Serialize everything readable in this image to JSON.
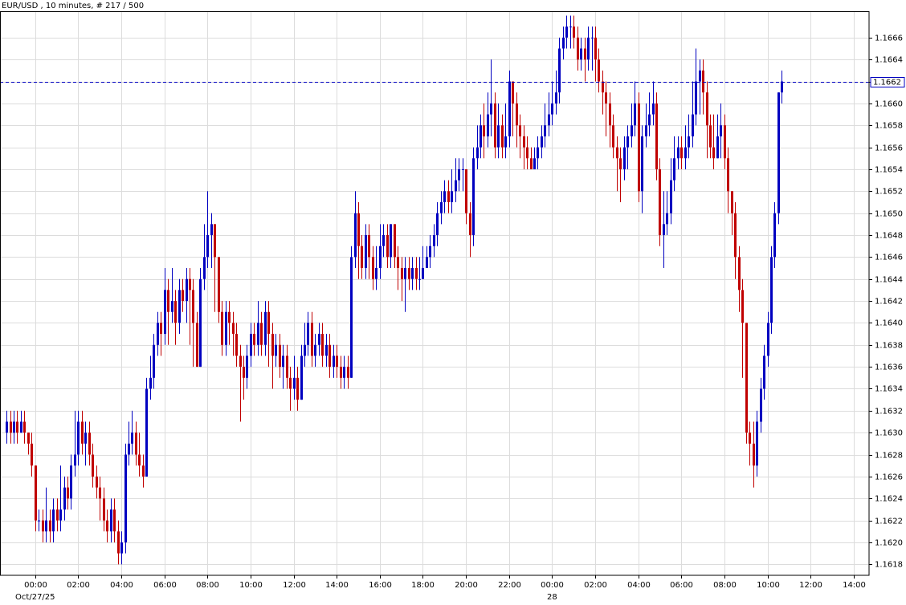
{
  "chart_data": {
    "type": "candlestick",
    "title": "EUR/USD , 10 minutes, # 217 / 500",
    "up_color": "#0000c0",
    "down_color": "#c00000",
    "grid": true,
    "last_price": 1.1662,
    "last_price_color": "#0000c0",
    "xlim": [
      -1.8,
      240.3
    ],
    "xticks": [
      {
        "value": 8,
        "label": "00:00"
      },
      {
        "value": 20,
        "label": "02:00"
      },
      {
        "value": 32,
        "label": "04:00"
      },
      {
        "value": 44,
        "label": "06:00"
      },
      {
        "value": 56,
        "label": "08:00"
      },
      {
        "value": 68,
        "label": "10:00"
      },
      {
        "value": 80,
        "label": "12:00"
      },
      {
        "value": 92,
        "label": "14:00"
      },
      {
        "value": 104,
        "label": "16:00"
      },
      {
        "value": 116,
        "label": "18:00"
      },
      {
        "value": 128,
        "label": "20:00"
      },
      {
        "value": 140,
        "label": "22:00"
      },
      {
        "value": 152,
        "label": "00:00"
      },
      {
        "value": 164,
        "label": "02:00"
      },
      {
        "value": 176,
        "label": "04:00"
      },
      {
        "value": 188,
        "label": "06:00"
      },
      {
        "value": 200,
        "label": "08:00"
      },
      {
        "value": 212,
        "label": "10:00"
      },
      {
        "value": 224,
        "label": "12:00"
      },
      {
        "value": 236,
        "label": "14:00"
      }
    ],
    "date_labels": [
      {
        "value": 8,
        "label": "Oct/27/25"
      },
      {
        "value": 152,
        "label": "28"
      }
    ],
    "ylim": [
      1.1617,
      1.16684
    ],
    "yticks": [
      1.1618,
      {
        "value": 1.162,
        "label": "1.1620"
      },
      1.1622,
      1.1624,
      1.1626,
      1.1628,
      {
        "value": 1.163,
        "label": "1.1630"
      },
      1.1632,
      1.1634,
      1.1636,
      1.1638,
      {
        "value": 1.164,
        "label": "1.1640"
      },
      1.1642,
      1.1644,
      1.1646,
      1.1648,
      {
        "value": 1.165,
        "label": "1.1650"
      },
      1.1652,
      1.1654,
      1.1656,
      1.1658,
      {
        "value": 1.166,
        "label": "1.1660"
      },
      1.1662,
      1.1664,
      1.1666
    ],
    "candles": [
      [
        1.163,
        1.1632,
        1.1629,
        1.1631
      ],
      [
        1.1631,
        1.1632,
        1.1629,
        1.163
      ],
      [
        1.163,
        1.1632,
        1.1629,
        1.1631
      ],
      [
        1.1631,
        1.1632,
        1.1629,
        1.163
      ],
      [
        1.163,
        1.1632,
        1.163,
        1.1631
      ],
      [
        1.1631,
        1.1632,
        1.1629,
        1.163
      ],
      [
        1.163,
        1.163,
        1.1628,
        1.1629
      ],
      [
        1.1629,
        1.163,
        1.1626,
        1.1627
      ],
      [
        1.1627,
        1.1627,
        1.1621,
        1.1622
      ],
      [
        1.1622,
        1.1623,
        1.1621,
        1.1622
      ],
      [
        1.1622,
        1.1623,
        1.162,
        1.1621
      ],
      [
        1.1621,
        1.1625,
        1.162,
        1.1622
      ],
      [
        1.1622,
        1.1623,
        1.162,
        1.1621
      ],
      [
        1.1621,
        1.1624,
        1.162,
        1.1623
      ],
      [
        1.1623,
        1.1624,
        1.1621,
        1.1622
      ],
      [
        1.1622,
        1.1627,
        1.1621,
        1.1623
      ],
      [
        1.1623,
        1.1626,
        1.1622,
        1.1625
      ],
      [
        1.1625,
        1.1626,
        1.1623,
        1.1624
      ],
      [
        1.1624,
        1.1628,
        1.1623,
        1.1627
      ],
      [
        1.1627,
        1.1632,
        1.1626,
        1.1628
      ],
      [
        1.1628,
        1.1632,
        1.1627,
        1.1631
      ],
      [
        1.1631,
        1.1632,
        1.1628,
        1.1629
      ],
      [
        1.1629,
        1.1631,
        1.1627,
        1.163
      ],
      [
        1.163,
        1.1631,
        1.1627,
        1.1628
      ],
      [
        1.1628,
        1.1629,
        1.1625,
        1.1626
      ],
      [
        1.1626,
        1.1627,
        1.1624,
        1.1625
      ],
      [
        1.1625,
        1.1626,
        1.1622,
        1.1624
      ],
      [
        1.1624,
        1.1625,
        1.1621,
        1.1622
      ],
      [
        1.1622,
        1.1623,
        1.162,
        1.1621
      ],
      [
        1.1621,
        1.1624,
        1.162,
        1.1623
      ],
      [
        1.1623,
        1.1624,
        1.162,
        1.1621
      ],
      [
        1.1621,
        1.1622,
        1.1618,
        1.1619
      ],
      [
        1.1619,
        1.1621,
        1.1618,
        1.162
      ],
      [
        1.162,
        1.1629,
        1.1619,
        1.1628
      ],
      [
        1.1628,
        1.1631,
        1.1627,
        1.1629
      ],
      [
        1.1629,
        1.1632,
        1.1628,
        1.163
      ],
      [
        1.163,
        1.1631,
        1.1627,
        1.1628
      ],
      [
        1.1628,
        1.163,
        1.1626,
        1.1627
      ],
      [
        1.1627,
        1.1628,
        1.1625,
        1.1626
      ],
      [
        1.1626,
        1.1635,
        1.1626,
        1.1634
      ],
      [
        1.1634,
        1.1637,
        1.1633,
        1.1635
      ],
      [
        1.1635,
        1.1639,
        1.1634,
        1.1638
      ],
      [
        1.1638,
        1.1641,
        1.1637,
        1.164
      ],
      [
        1.164,
        1.1641,
        1.1637,
        1.1639
      ],
      [
        1.1639,
        1.1645,
        1.1638,
        1.1643
      ],
      [
        1.1643,
        1.1644,
        1.1638,
        1.1641
      ],
      [
        1.1641,
        1.1645,
        1.164,
        1.1642
      ],
      [
        1.1642,
        1.1643,
        1.1638,
        1.164
      ],
      [
        1.164,
        1.1644,
        1.1639,
        1.1643
      ],
      [
        1.1643,
        1.1644,
        1.1641,
        1.1642
      ],
      [
        1.1642,
        1.1645,
        1.164,
        1.1644
      ],
      [
        1.1644,
        1.1645,
        1.1638,
        1.1643
      ],
      [
        1.1643,
        1.1644,
        1.1636,
        1.164
      ],
      [
        1.164,
        1.1641,
        1.1636,
        1.1636
      ],
      [
        1.1636,
        1.1645,
        1.1636,
        1.1644
      ],
      [
        1.1644,
        1.1649,
        1.1643,
        1.1646
      ],
      [
        1.1646,
        1.1652,
        1.1645,
        1.1648
      ],
      [
        1.1648,
        1.165,
        1.1645,
        1.1649
      ],
      [
        1.1649,
        1.1649,
        1.1641,
        1.1646
      ],
      [
        1.1646,
        1.1646,
        1.164,
        1.1641
      ],
      [
        1.1641,
        1.1642,
        1.1637,
        1.1638
      ],
      [
        1.1638,
        1.1642,
        1.1637,
        1.1641
      ],
      [
        1.1641,
        1.1642,
        1.1638,
        1.164
      ],
      [
        1.164,
        1.1641,
        1.1637,
        1.1639
      ],
      [
        1.1639,
        1.164,
        1.1636,
        1.1637
      ],
      [
        1.1637,
        1.1638,
        1.1631,
        1.1636
      ],
      [
        1.1636,
        1.1637,
        1.1633,
        1.1635
      ],
      [
        1.1635,
        1.1638,
        1.1634,
        1.1637
      ],
      [
        1.1637,
        1.164,
        1.1636,
        1.1639
      ],
      [
        1.1639,
        1.164,
        1.1637,
        1.1638
      ],
      [
        1.1638,
        1.1642,
        1.1637,
        1.164
      ],
      [
        1.164,
        1.1641,
        1.1637,
        1.1638
      ],
      [
        1.1638,
        1.1642,
        1.1637,
        1.1641
      ],
      [
        1.1641,
        1.1642,
        1.1636,
        1.1639
      ],
      [
        1.1639,
        1.164,
        1.1634,
        1.1637
      ],
      [
        1.1637,
        1.1639,
        1.1636,
        1.1638
      ],
      [
        1.1638,
        1.1639,
        1.1635,
        1.1636
      ],
      [
        1.1636,
        1.1638,
        1.1634,
        1.1637
      ],
      [
        1.1637,
        1.1638,
        1.1634,
        1.1635
      ],
      [
        1.1635,
        1.1636,
        1.1632,
        1.1634
      ],
      [
        1.1634,
        1.1637,
        1.1633,
        1.1635
      ],
      [
        1.1635,
        1.1636,
        1.1632,
        1.1633
      ],
      [
        1.1633,
        1.1638,
        1.1633,
        1.1637
      ],
      [
        1.1637,
        1.164,
        1.1636,
        1.1638
      ],
      [
        1.1638,
        1.1641,
        1.1637,
        1.164
      ],
      [
        1.164,
        1.1641,
        1.1636,
        1.1637
      ],
      [
        1.1637,
        1.1639,
        1.1636,
        1.1638
      ],
      [
        1.1638,
        1.164,
        1.1637,
        1.1639
      ],
      [
        1.1639,
        1.164,
        1.1636,
        1.1637
      ],
      [
        1.1637,
        1.1639,
        1.1636,
        1.1638
      ],
      [
        1.1638,
        1.1639,
        1.1635,
        1.1636
      ],
      [
        1.1636,
        1.1638,
        1.1635,
        1.1637
      ],
      [
        1.1637,
        1.1638,
        1.1635,
        1.1636
      ],
      [
        1.1636,
        1.1637,
        1.1634,
        1.1635
      ],
      [
        1.1635,
        1.1637,
        1.1634,
        1.1636
      ],
      [
        1.1636,
        1.1637,
        1.1634,
        1.1635
      ],
      [
        1.1635,
        1.1647,
        1.1635,
        1.1646
      ],
      [
        1.1646,
        1.1652,
        1.1645,
        1.165
      ],
      [
        1.165,
        1.1651,
        1.1644,
        1.1647
      ],
      [
        1.1647,
        1.1648,
        1.1644,
        1.1645
      ],
      [
        1.1645,
        1.1649,
        1.1644,
        1.1648
      ],
      [
        1.1648,
        1.1649,
        1.1644,
        1.1646
      ],
      [
        1.1646,
        1.1647,
        1.1643,
        1.1644
      ],
      [
        1.1644,
        1.1647,
        1.1643,
        1.1645
      ],
      [
        1.1645,
        1.1649,
        1.1644,
        1.1647
      ],
      [
        1.1647,
        1.1649,
        1.1646,
        1.1648
      ],
      [
        1.1648,
        1.1649,
        1.1645,
        1.1646
      ],
      [
        1.1646,
        1.1649,
        1.1645,
        1.1649
      ],
      [
        1.1649,
        1.1649,
        1.1645,
        1.1646
      ],
      [
        1.1646,
        1.1647,
        1.1643,
        1.1645
      ],
      [
        1.1645,
        1.1646,
        1.1642,
        1.1644
      ],
      [
        1.1644,
        1.1646,
        1.1641,
        1.1645
      ],
      [
        1.1645,
        1.1646,
        1.1643,
        1.1644
      ],
      [
        1.1644,
        1.1646,
        1.1643,
        1.1645
      ],
      [
        1.1645,
        1.1646,
        1.1643,
        1.1644
      ],
      [
        1.1644,
        1.1646,
        1.1643,
        1.1644
      ],
      [
        1.1644,
        1.1647,
        1.1644,
        1.1645
      ],
      [
        1.1645,
        1.1647,
        1.1645,
        1.1646
      ],
      [
        1.1646,
        1.1648,
        1.1645,
        1.1647
      ],
      [
        1.1647,
        1.1649,
        1.1646,
        1.1648
      ],
      [
        1.1648,
        1.1651,
        1.1647,
        1.165
      ],
      [
        1.165,
        1.1652,
        1.1649,
        1.1651
      ],
      [
        1.1651,
        1.1653,
        1.165,
        1.1652
      ],
      [
        1.1652,
        1.1653,
        1.165,
        1.1651
      ],
      [
        1.1651,
        1.1654,
        1.165,
        1.1652
      ],
      [
        1.1652,
        1.1655,
        1.1651,
        1.1653
      ],
      [
        1.1653,
        1.1655,
        1.1652,
        1.1654
      ],
      [
        1.1654,
        1.1655,
        1.1652,
        1.1654
      ],
      [
        1.1654,
        1.1654,
        1.1649,
        1.165
      ],
      [
        1.165,
        1.1651,
        1.1646,
        1.1648
      ],
      [
        1.1648,
        1.1656,
        1.1647,
        1.1655
      ],
      [
        1.1655,
        1.1658,
        1.1654,
        1.1656
      ],
      [
        1.1656,
        1.1659,
        1.1655,
        1.1658
      ],
      [
        1.1658,
        1.166,
        1.1655,
        1.1657
      ],
      [
        1.1657,
        1.1661,
        1.1656,
        1.1659
      ],
      [
        1.1659,
        1.1664,
        1.1657,
        1.166
      ],
      [
        1.166,
        1.1661,
        1.1655,
        1.1656
      ],
      [
        1.1656,
        1.166,
        1.1655,
        1.1658
      ],
      [
        1.1658,
        1.1659,
        1.1655,
        1.1656
      ],
      [
        1.1656,
        1.166,
        1.1655,
        1.1657
      ],
      [
        1.1657,
        1.1663,
        1.1656,
        1.1662
      ],
      [
        1.1662,
        1.1662,
        1.1657,
        1.166
      ],
      [
        1.166,
        1.1661,
        1.1656,
        1.1658
      ],
      [
        1.1658,
        1.1659,
        1.1655,
        1.1657
      ],
      [
        1.1657,
        1.1658,
        1.1654,
        1.1656
      ],
      [
        1.1656,
        1.1657,
        1.1654,
        1.1655
      ],
      [
        1.1655,
        1.1656,
        1.1654,
        1.1654
      ],
      [
        1.1654,
        1.1656,
        1.1654,
        1.1655
      ],
      [
        1.1655,
        1.1657,
        1.1654,
        1.1656
      ],
      [
        1.1656,
        1.1658,
        1.1655,
        1.1657
      ],
      [
        1.1657,
        1.166,
        1.1656,
        1.1658
      ],
      [
        1.1658,
        1.1661,
        1.1657,
        1.1659
      ],
      [
        1.1659,
        1.1662,
        1.1658,
        1.166
      ],
      [
        1.166,
        1.1663,
        1.1659,
        1.1661
      ],
      [
        1.1661,
        1.1666,
        1.166,
        1.1665
      ],
      [
        1.1665,
        1.1667,
        1.1664,
        1.1666
      ],
      [
        1.1666,
        1.1668,
        1.1665,
        1.1667
      ],
      [
        1.1667,
        1.1668,
        1.1665,
        1.1667
      ],
      [
        1.1667,
        1.1668,
        1.1665,
        1.1666
      ],
      [
        1.1666,
        1.1667,
        1.1663,
        1.1664
      ],
      [
        1.1664,
        1.1666,
        1.1663,
        1.1665
      ],
      [
        1.1665,
        1.1666,
        1.1662,
        1.1664
      ],
      [
        1.1664,
        1.1667,
        1.1663,
        1.1666
      ],
      [
        1.1666,
        1.1667,
        1.1663,
        1.1666
      ],
      [
        1.1666,
        1.1667,
        1.1662,
        1.1664
      ],
      [
        1.1664,
        1.1665,
        1.1661,
        1.1662
      ],
      [
        1.1662,
        1.1663,
        1.1659,
        1.1661
      ],
      [
        1.1661,
        1.1662,
        1.1657,
        1.166
      ],
      [
        1.166,
        1.1661,
        1.1656,
        1.1658
      ],
      [
        1.1658,
        1.1659,
        1.1655,
        1.1656
      ],
      [
        1.1656,
        1.1657,
        1.1652,
        1.1655
      ],
      [
        1.1655,
        1.1656,
        1.1651,
        1.1654
      ],
      [
        1.1654,
        1.1657,
        1.1653,
        1.1656
      ],
      [
        1.1656,
        1.1658,
        1.1654,
        1.1657
      ],
      [
        1.1657,
        1.166,
        1.1656,
        1.1658
      ],
      [
        1.1658,
        1.1662,
        1.1657,
        1.166
      ],
      [
        1.166,
        1.1661,
        1.1651,
        1.1652
      ],
      [
        1.1652,
        1.1658,
        1.165,
        1.1657
      ],
      [
        1.1657,
        1.166,
        1.1656,
        1.1658
      ],
      [
        1.1658,
        1.1661,
        1.1657,
        1.1659
      ],
      [
        1.1659,
        1.1662,
        1.1658,
        1.166
      ],
      [
        1.166,
        1.1661,
        1.1653,
        1.1654
      ],
      [
        1.1654,
        1.1655,
        1.1647,
        1.1648
      ],
      [
        1.1648,
        1.1652,
        1.1645,
        1.1649
      ],
      [
        1.1649,
        1.1652,
        1.1648,
        1.165
      ],
      [
        1.165,
        1.1655,
        1.1649,
        1.1653
      ],
      [
        1.1653,
        1.1657,
        1.1652,
        1.1655
      ],
      [
        1.1655,
        1.1657,
        1.1654,
        1.1656
      ],
      [
        1.1656,
        1.1657,
        1.1654,
        1.1655
      ],
      [
        1.1655,
        1.1658,
        1.1654,
        1.1656
      ],
      [
        1.1656,
        1.1659,
        1.1655,
        1.1657
      ],
      [
        1.1657,
        1.1662,
        1.1656,
        1.1659
      ],
      [
        1.1659,
        1.1665,
        1.1658,
        1.1662
      ],
      [
        1.1662,
        1.1664,
        1.1659,
        1.1663
      ],
      [
        1.1663,
        1.1664,
        1.1659,
        1.1661
      ],
      [
        1.1661,
        1.1662,
        1.1655,
        1.1658
      ],
      [
        1.1658,
        1.1659,
        1.1655,
        1.1656
      ],
      [
        1.1656,
        1.1659,
        1.1654,
        1.1655
      ],
      [
        1.1655,
        1.1659,
        1.1655,
        1.1657
      ],
      [
        1.1657,
        1.166,
        1.1655,
        1.1658
      ],
      [
        1.1658,
        1.1659,
        1.1654,
        1.1655
      ],
      [
        1.1655,
        1.1656,
        1.165,
        1.1652
      ],
      [
        1.1652,
        1.1652,
        1.1648,
        1.165
      ],
      [
        1.165,
        1.1651,
        1.1644,
        1.1646
      ],
      [
        1.1646,
        1.1647,
        1.1641,
        1.1643
      ],
      [
        1.1643,
        1.1644,
        1.1635,
        1.164
      ],
      [
        1.164,
        1.164,
        1.1629,
        1.163
      ],
      [
        1.163,
        1.1631,
        1.1627,
        1.1629
      ],
      [
        1.1629,
        1.1631,
        1.1625,
        1.1627
      ],
      [
        1.1627,
        1.1632,
        1.1626,
        1.1631
      ],
      [
        1.1631,
        1.1635,
        1.163,
        1.1634
      ],
      [
        1.1634,
        1.1638,
        1.1633,
        1.1637
      ],
      [
        1.1637,
        1.1641,
        1.1636,
        1.164
      ],
      [
        1.164,
        1.1647,
        1.1639,
        1.1646
      ],
      [
        1.1646,
        1.1651,
        1.1645,
        1.165
      ],
      [
        1.165,
        1.1661,
        1.1649,
        1.1661
      ],
      [
        1.1661,
        1.1663,
        1.166,
        1.1662
      ]
    ]
  }
}
